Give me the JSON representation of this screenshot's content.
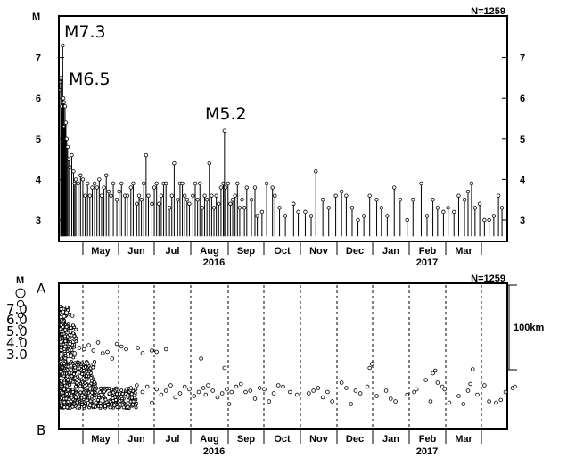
{
  "chart_data": [
    {
      "type": "scatter",
      "title": "",
      "ylabel": "M",
      "n_label": "N=1259",
      "y_ticks": [
        "3",
        "4",
        "5",
        "6",
        "7"
      ],
      "ylim": [
        2.6,
        8.0
      ],
      "months": [
        "May",
        "Jun",
        "Jul",
        "Aug",
        "Sep",
        "Oct",
        "Nov",
        "Dec",
        "Jan",
        "Feb",
        "Mar"
      ],
      "years": [
        "2016",
        "2017"
      ],
      "annotations": [
        {
          "text": "M7.3",
          "day": 1.8,
          "mag": 7.3
        },
        {
          "text": "M6.5",
          "day": 0.2,
          "mag": 6.5
        },
        {
          "text": "M5.2",
          "day": 140,
          "mag": 5.2
        }
      ],
      "series": [
        {
          "values": [
            [
              0.0,
              6.2
            ],
            [
              0.1,
              6.4
            ],
            [
              0.2,
              6.5
            ],
            [
              0.8,
              5.8
            ],
            [
              1.8,
              7.3
            ],
            [
              2.3,
              6.0
            ],
            [
              2.8,
              5.9
            ],
            [
              3.3,
              5.3
            ],
            [
              3.8,
              5.8
            ],
            [
              4.5,
              5.4
            ],
            [
              5.2,
              5.0
            ],
            [
              6.0,
              4.8
            ],
            [
              7,
              4.5
            ],
            [
              8,
              4.3
            ],
            [
              9.5,
              4.6
            ],
            [
              11,
              4.2
            ],
            [
              12,
              3.9
            ],
            [
              13,
              4.0
            ],
            [
              15,
              3.9
            ],
            [
              17,
              4.1
            ],
            [
              19,
              4.0
            ],
            [
              21,
              3.6
            ],
            [
              23,
              3.9
            ],
            [
              25,
              3.6
            ],
            [
              27,
              3.8
            ],
            [
              29,
              3.9
            ],
            [
              31,
              3.8
            ],
            [
              33,
              4.0
            ],
            [
              35,
              3.6
            ],
            [
              37,
              3.8
            ],
            [
              39,
              4.1
            ],
            [
              41,
              3.7
            ],
            [
              43,
              3.6
            ],
            [
              45,
              3.9
            ],
            [
              48,
              3.5
            ],
            [
              50,
              3.7
            ],
            [
              52,
              3.9
            ],
            [
              55,
              3.6
            ],
            [
              57,
              3.6
            ],
            [
              60,
              3.8
            ],
            [
              62,
              3.9
            ],
            [
              65,
              3.4
            ],
            [
              67,
              3.6
            ],
            [
              69,
              3.5
            ],
            [
              71,
              3.9
            ],
            [
              73,
              4.6
            ],
            [
              75,
              3.6
            ],
            [
              78,
              3.4
            ],
            [
              80,
              3.8
            ],
            [
              82,
              3.9
            ],
            [
              84,
              3.4
            ],
            [
              86,
              3.6
            ],
            [
              88,
              3.9
            ],
            [
              90,
              3.9
            ],
            [
              93,
              3.3
            ],
            [
              95,
              3.6
            ],
            [
              97,
              4.4
            ],
            [
              100,
              3.5
            ],
            [
              102,
              3.9
            ],
            [
              104,
              3.9
            ],
            [
              106,
              3.6
            ],
            [
              108,
              3.5
            ],
            [
              110,
              3.4
            ],
            [
              113,
              3.6
            ],
            [
              115,
              3.9
            ],
            [
              117,
              3.5
            ],
            [
              119,
              3.9
            ],
            [
              121,
              3.3
            ],
            [
              123,
              3.6
            ],
            [
              125,
              3.5
            ],
            [
              127,
              4.4
            ],
            [
              129,
              3.6
            ],
            [
              131,
              3.3
            ],
            [
              133,
              3.6
            ],
            [
              135,
              3.4
            ],
            [
              137,
              3.8
            ],
            [
              139,
              3.9
            ],
            [
              140,
              5.2
            ],
            [
              141,
              3.8
            ],
            [
              143,
              3.9
            ],
            [
              145,
              3.4
            ],
            [
              147,
              3.5
            ],
            [
              149,
              3.6
            ],
            [
              151,
              3.9
            ],
            [
              153,
              3.3
            ],
            [
              155,
              3.5
            ],
            [
              157,
              3.3
            ],
            [
              159,
              3.8
            ],
            [
              163,
              3.5
            ],
            [
              166,
              3.8
            ],
            [
              168,
              3.1
            ],
            [
              172,
              3.2
            ],
            [
              176,
              3.9
            ],
            [
              181,
              3.8
            ],
            [
              183,
              3.6
            ],
            [
              187,
              3.3
            ],
            [
              192,
              3.1
            ],
            [
              199,
              3.4
            ],
            [
              203,
              3.2
            ],
            [
              209,
              3.2
            ],
            [
              214,
              3.1
            ],
            [
              218,
              4.2
            ],
            [
              224,
              3.5
            ],
            [
              229,
              3.3
            ],
            [
              235,
              3.6
            ],
            [
              240,
              3.7
            ],
            [
              244,
              3.6
            ],
            [
              249,
              3.3
            ],
            [
              254,
              3.0
            ],
            [
              259,
              3.1
            ],
            [
              264,
              3.6
            ],
            [
              270,
              3.5
            ],
            [
              274,
              3.3
            ],
            [
              279,
              3.1
            ],
            [
              285,
              3.8
            ],
            [
              290,
              3.5
            ],
            [
              296,
              3.0
            ],
            [
              301,
              3.5
            ],
            [
              308,
              3.9
            ],
            [
              313,
              3.1
            ],
            [
              318,
              3.5
            ],
            [
              322,
              3.3
            ],
            [
              327,
              3.2
            ],
            [
              331,
              3.3
            ],
            [
              336,
              3.2
            ],
            [
              340,
              3.6
            ],
            [
              345,
              3.5
            ],
            [
              348,
              3.7
            ],
            [
              351,
              3.9
            ],
            [
              354,
              3.3
            ],
            [
              358,
              3.4
            ],
            [
              362,
              3.0
            ],
            [
              366,
              3.0
            ],
            [
              370,
              3.1
            ],
            [
              374,
              3.6
            ],
            [
              377,
              3.3
            ]
          ]
        }
      ]
    },
    {
      "type": "scatter",
      "title": "",
      "ylabel": "M",
      "n_label": "N=1259",
      "label_a": "A",
      "label_b": "B",
      "scale_label": "100km",
      "size_legend": [
        "7.0",
        "6.0",
        "5.0",
        "4.0",
        "3.0"
      ],
      "months": [
        "May",
        "Jun",
        "Jul",
        "Aug",
        "Sep",
        "Oct",
        "Nov",
        "Dec",
        "Jan",
        "Feb",
        "Mar"
      ],
      "years": [
        "2016",
        "2017"
      ],
      "dense_bands": [
        [
          0,
          7,
          100,
          140
        ],
        [
          0,
          14,
          62,
          112
        ],
        [
          0,
          30,
          20,
          58
        ],
        [
          0,
          65,
          -12,
          18
        ]
      ],
      "series": [
        {
          "values": [
            [
              1,
              128
            ],
            [
              2,
              132
            ],
            [
              3,
              125
            ],
            [
              5,
              131
            ],
            [
              8,
              128
            ],
            [
              10,
              126
            ],
            [
              4,
              80
            ],
            [
              8,
              84
            ],
            [
              12,
              70
            ],
            [
              16,
              78
            ],
            [
              20,
              76
            ],
            [
              24,
              82
            ],
            [
              28,
              74
            ],
            [
              32,
              86
            ],
            [
              36,
              70
            ],
            [
              40,
              72
            ],
            [
              44,
              62
            ],
            [
              48,
              84
            ],
            [
              52,
              80
            ],
            [
              56,
              76
            ],
            [
              66,
              78
            ],
            [
              70,
              70
            ],
            [
              78,
              74
            ],
            [
              82,
              72
            ],
            [
              90,
              76
            ],
            [
              60,
              18
            ],
            [
              65,
              22
            ],
            [
              70,
              12
            ],
            [
              74,
              20
            ],
            [
              78,
              -4
            ],
            [
              82,
              16
            ],
            [
              86,
              8
            ],
            [
              90,
              14
            ],
            [
              94,
              22
            ],
            [
              98,
              4
            ],
            [
              102,
              10
            ],
            [
              106,
              20
            ],
            [
              110,
              16
            ],
            [
              114,
              6
            ],
            [
              118,
              12
            ],
            [
              120,
              62
            ],
            [
              122,
              18
            ],
            [
              124,
              8
            ],
            [
              126,
              22
            ],
            [
              130,
              14
            ],
            [
              134,
              4
            ],
            [
              138,
              10
            ],
            [
              140,
              48
            ],
            [
              142,
              16
            ],
            [
              144,
              -6
            ],
            [
              146,
              12
            ],
            [
              150,
              20
            ],
            [
              154,
              24
            ],
            [
              158,
              12
            ],
            [
              162,
              14
            ],
            [
              166,
              2
            ],
            [
              170,
              18
            ],
            [
              174,
              16
            ],
            [
              178,
              -2
            ],
            [
              182,
              10
            ],
            [
              186,
              22
            ],
            [
              190,
              20
            ],
            [
              196,
              12
            ],
            [
              202,
              8
            ],
            [
              212,
              10
            ],
            [
              216,
              14
            ],
            [
              220,
              18
            ],
            [
              224,
              4
            ],
            [
              228,
              12
            ],
            [
              232,
              -2
            ],
            [
              240,
              26
            ],
            [
              244,
              18
            ],
            [
              248,
              -6
            ],
            [
              252,
              14
            ],
            [
              256,
              10
            ],
            [
              262,
              20
            ],
            [
              264,
              48
            ],
            [
              266,
              54
            ],
            [
              270,
              6
            ],
            [
              278,
              14
            ],
            [
              282,
              2
            ],
            [
              286,
              -2
            ],
            [
              296,
              8
            ],
            [
              302,
              12
            ],
            [
              304,
              16
            ],
            [
              312,
              30
            ],
            [
              316,
              -2
            ],
            [
              318,
              40
            ],
            [
              320,
              44
            ],
            [
              322,
              26
            ],
            [
              326,
              20
            ],
            [
              328,
              16
            ],
            [
              332,
              -4
            ],
            [
              340,
              6
            ],
            [
              344,
              -6
            ],
            [
              348,
              14
            ],
            [
              350,
              24
            ],
            [
              352,
              46
            ],
            [
              356,
              8
            ],
            [
              362,
              22
            ],
            [
              366,
              -2
            ],
            [
              372,
              -4
            ],
            [
              376,
              0
            ],
            [
              380,
              12
            ],
            [
              386,
              18
            ],
            [
              388,
              20
            ]
          ]
        }
      ]
    }
  ]
}
